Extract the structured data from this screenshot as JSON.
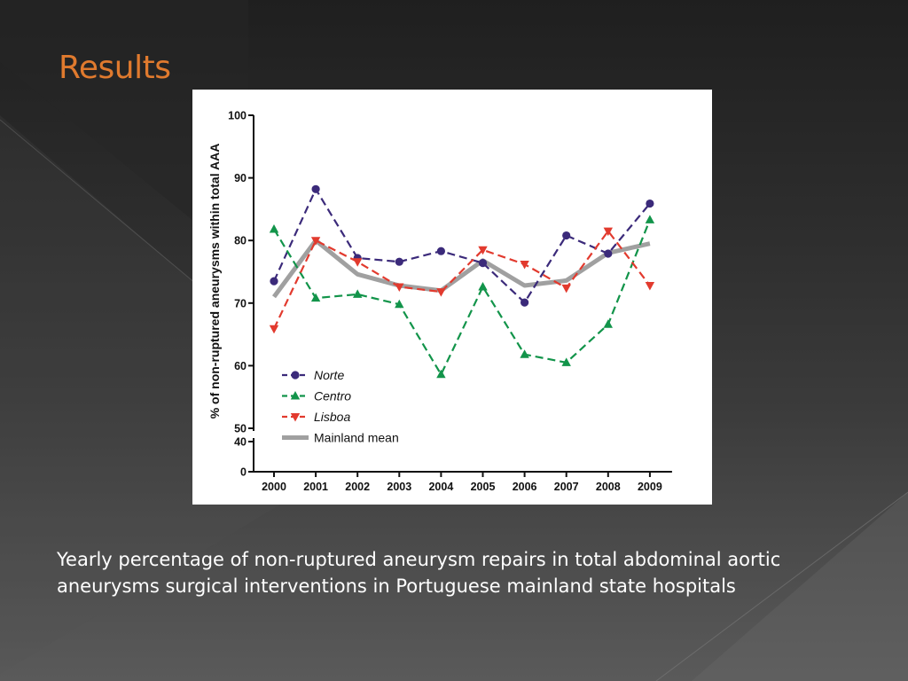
{
  "slide": {
    "title": "Results",
    "caption": "Yearly percentage of non-ruptured aneurysm repairs in total abdominal aortic aneurysms surgical interventions in Portuguese mainland state hospitals",
    "title_color": "#e07a2e"
  },
  "chart_data": {
    "type": "line",
    "title": "",
    "xlabel": "",
    "ylabel": "% of non-ruptured aneurysms within total AAA",
    "categories": [
      "2000",
      "2001",
      "2002",
      "2003",
      "2004",
      "2005",
      "2006",
      "2007",
      "2008",
      "2009"
    ],
    "y_axis": {
      "ticks": [
        0,
        40,
        50,
        60,
        70,
        80,
        90,
        100
      ],
      "broken": true,
      "ylim": [
        0,
        100
      ]
    },
    "grid": false,
    "legend_position": "bottom-left",
    "series": [
      {
        "name": "Norte",
        "marker": "circle",
        "dashed": true,
        "color": "#3b2a7a",
        "values": [
          73.5,
          88.2,
          77.2,
          76.6,
          78.3,
          76.4,
          70.1,
          80.8,
          77.9,
          85.9
        ]
      },
      {
        "name": "Centro",
        "marker": "triangle-up",
        "dashed": true,
        "color": "#12944a",
        "values": [
          81.8,
          70.8,
          71.4,
          69.8,
          58.6,
          72.6,
          61.8,
          60.5,
          66.6,
          83.3
        ]
      },
      {
        "name": "Lisboa",
        "marker": "triangle-down",
        "dashed": true,
        "color": "#e23a2e",
        "values": [
          65.9,
          80.0,
          76.6,
          72.6,
          71.8,
          78.5,
          76.2,
          72.4,
          81.5,
          72.8
        ]
      },
      {
        "name": "Mainland mean",
        "marker": "none",
        "dashed": false,
        "color": "#a0a0a0",
        "values": [
          71.0,
          80.0,
          74.6,
          72.8,
          72.0,
          76.8,
          72.8,
          73.6,
          78.0,
          79.5
        ]
      }
    ]
  }
}
